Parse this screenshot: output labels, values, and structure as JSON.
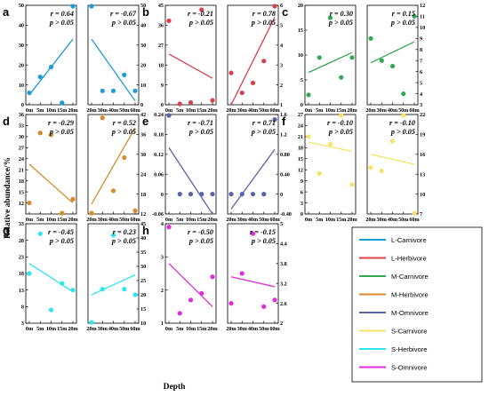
{
  "figure": {
    "ylabel": "Relative abundance/%",
    "xlabel": "Depth"
  },
  "legend": [
    {
      "name": "L-Carnivore",
      "color": "#1f9bd7"
    },
    {
      "name": "L-Herbivore",
      "color": "#d9404a"
    },
    {
      "name": "M-Carnivore",
      "color": "#33a852"
    },
    {
      "name": "M-Herbivore",
      "color": "#d98a2b"
    },
    {
      "name": "M-Omnivore",
      "color": "#5a62a8"
    },
    {
      "name": "S-Carnivore",
      "color": "#f5e46a"
    },
    {
      "name": "S-Herbivore",
      "color": "#2ee6f0"
    },
    {
      "name": "S-Omnivore",
      "color": "#e02fd8"
    }
  ],
  "chart_data": [
    {
      "label": "a",
      "type": "scatter",
      "panels": [
        {
          "series": "L-Carnivore",
          "color": "#1f9bd7",
          "ylim": [
            0,
            50
          ],
          "yticks": [
            0,
            10,
            20,
            30,
            40,
            50
          ],
          "yaxis": "left",
          "xticks": [
            "0m",
            "5m",
            "10m",
            "15m",
            "20m"
          ],
          "points": [
            [
              0,
              6
            ],
            [
              1,
              14
            ],
            [
              2,
              19
            ],
            [
              3,
              1
            ],
            [
              4,
              50
            ]
          ],
          "fit": [
            [
              0,
              5
            ],
            [
              4,
              33
            ]
          ],
          "r": "r = 0.64",
          "p": "p > 0.05"
        },
        {
          "series": "L-Carnivore",
          "color": "#1f9bd7",
          "ylim": [
            0,
            50
          ],
          "yticks": [
            0,
            10,
            20,
            30,
            40,
            50
          ],
          "yaxis": "right",
          "xticks": [
            "20m",
            "30m",
            "40m",
            "50m",
            "60m"
          ],
          "points": [
            [
              0,
              50
            ],
            [
              1,
              7
            ],
            [
              2,
              7
            ],
            [
              3,
              15
            ],
            [
              4,
              7
            ]
          ],
          "fit": [
            [
              0,
              33
            ],
            [
              4,
              2
            ]
          ],
          "r": "r = -0.67",
          "p": "p > 0.05"
        }
      ]
    },
    {
      "label": "b",
      "type": "scatter",
      "panels": [
        {
          "series": "L-Herbivore",
          "color": "#d9404a",
          "ylim": [
            0,
            45
          ],
          "yticks": [
            0,
            9,
            18,
            27,
            36,
            45
          ],
          "yaxis": "left",
          "xticks": [
            "0m",
            "5m",
            "10m",
            "15m",
            "20m"
          ],
          "points": [
            [
              0,
              38
            ],
            [
              1,
              0
            ],
            [
              2,
              1
            ],
            [
              3,
              43
            ],
            [
              4,
              2
            ]
          ],
          "fit": [
            [
              0,
              23
            ],
            [
              4,
              12
            ]
          ],
          "r": "r = -0.21",
          "p": "p > 0.05"
        },
        {
          "series": "L-Herbivore",
          "color": "#d9404a",
          "ylim": [
            1,
            6
          ],
          "yticks": [
            1,
            2,
            3,
            4,
            5,
            6
          ],
          "yaxis": "right",
          "xticks": [
            "20m",
            "30m",
            "40m",
            "50m",
            "60m"
          ],
          "points": [
            [
              0,
              2.6
            ],
            [
              1,
              1.6
            ],
            [
              2,
              2.1
            ],
            [
              3,
              3.2
            ],
            [
              4,
              6
            ]
          ],
          "fit": [
            [
              0,
              1
            ],
            [
              4,
              5.4
            ]
          ],
          "r": "r = 0.78",
          "p": "p > 0.05"
        }
      ]
    },
    {
      "label": "c",
      "type": "scatter",
      "panels": [
        {
          "series": "M-Carnivore",
          "color": "#33a852",
          "ylim": [
            0,
            20
          ],
          "yticks": [
            0,
            5,
            10,
            15,
            20
          ],
          "yaxis": "left",
          "xticks": [
            "0m",
            "5m",
            "10m",
            "15m",
            "20m"
          ],
          "points": [
            [
              0,
              2
            ],
            [
              1,
              9.5
            ],
            [
              2,
              17.5
            ],
            [
              3,
              5.5
            ],
            [
              4,
              9.5
            ]
          ],
          "fit": [
            [
              0,
              6.5
            ],
            [
              4,
              10.5
            ]
          ],
          "r": "r = 0.30",
          "p": "p > 0.05"
        },
        {
          "series": "M-Carnivore",
          "color": "#33a852",
          "ylim": [
            3,
            12
          ],
          "yticks": [
            3,
            4,
            5,
            6,
            7,
            8,
            9,
            10,
            11,
            12
          ],
          "yaxis": "right",
          "xticks": [
            "20m",
            "30m",
            "40m",
            "50m",
            "60m"
          ],
          "points": [
            [
              0,
              9
            ],
            [
              1,
              7
            ],
            [
              2,
              6.5
            ],
            [
              3,
              4
            ],
            [
              4,
              11
            ]
          ],
          "fit": [
            [
              0,
              6.8
            ],
            [
              4,
              8.7
            ]
          ],
          "r": "r = 0.15",
          "p": "p > 0.05"
        }
      ]
    },
    {
      "label": "d",
      "type": "scatter",
      "panels": [
        {
          "series": "M-Herbivore",
          "color": "#d98a2b",
          "ylim": [
            9,
            36
          ],
          "yticks": [
            12,
            15,
            18,
            21,
            24,
            27,
            30,
            33,
            36
          ],
          "yaxis": "left",
          "xticks": [
            "0m",
            "5m",
            "10m",
            "15m",
            "20m"
          ],
          "points": [
            [
              0,
              12
            ],
            [
              1,
              31
            ],
            [
              2,
              30.5
            ],
            [
              3,
              9
            ],
            [
              4,
              13
            ]
          ],
          "fit": [
            [
              0,
              22.5
            ],
            [
              4,
              12
            ]
          ],
          "r": "r = -0.29",
          "p": "p > 0.05"
        },
        {
          "series": "M-Herbivore",
          "color": "#d98a2b",
          "ylim": [
            12,
            42
          ],
          "yticks": [
            12,
            18,
            24,
            30,
            36,
            42
          ],
          "yaxis": "right",
          "xticks": [
            "20m",
            "30m",
            "40m",
            "50m",
            "60m"
          ],
          "points": [
            [
              0,
              12
            ],
            [
              1,
              41
            ],
            [
              2,
              19
            ],
            [
              3,
              29
            ],
            [
              4,
              13
            ]
          ],
          "fit": [
            [
              0,
              15
            ],
            [
              4,
              38
            ]
          ],
          "r": "r = 0.52",
          "p": "p > 0.05"
        }
      ]
    },
    {
      "label": "e",
      "type": "scatter",
      "panels": [
        {
          "series": "M-Omnivore",
          "color": "#5a62a8",
          "ylim": [
            -0.06,
            0.24
          ],
          "yticks": [
            -0.06,
            0.0,
            0.06,
            0.12,
            0.18,
            0.24
          ],
          "yaxis": "left",
          "xticks": [
            "0m",
            "5m",
            "10m",
            "15m",
            "20m"
          ],
          "points": [
            [
              0,
              0.24
            ],
            [
              1,
              0
            ],
            [
              2,
              0
            ],
            [
              3,
              0
            ],
            [
              4,
              0
            ]
          ],
          "fit": [
            [
              0,
              0.14
            ],
            [
              4,
              -0.06
            ]
          ],
          "r": "r = -0.71",
          "p": "p > 0.05"
        },
        {
          "series": "M-Omnivore",
          "color": "#5a62a8",
          "ylim": [
            -0.4,
            1.6
          ],
          "yticks": [
            -0.4,
            0.0,
            0.4,
            0.8,
            1.2,
            1.6
          ],
          "yaxis": "right",
          "xticks": [
            "20m",
            "30m",
            "40m",
            "50m",
            "60m"
          ],
          "points": [
            [
              0,
              0
            ],
            [
              1,
              0
            ],
            [
              2,
              0
            ],
            [
              3,
              0
            ],
            [
              4,
              1.5
            ]
          ],
          "fit": [
            [
              0,
              -0.3
            ],
            [
              4,
              0.9
            ]
          ],
          "r": "r = 0.71",
          "p": "p > 0.05"
        }
      ]
    },
    {
      "label": "f",
      "type": "scatter",
      "panels": [
        {
          "series": "S-Carnivore",
          "color": "#f5e46a",
          "ylim": [
            0,
            27
          ],
          "yticks": [
            0,
            3,
            6,
            9,
            12,
            15,
            18,
            21,
            24,
            27
          ],
          "yaxis": "left",
          "xticks": [
            "0m",
            "5m",
            "10m",
            "15m",
            "20m"
          ],
          "points": [
            [
              0,
              21
            ],
            [
              1,
              11
            ],
            [
              2,
              19
            ],
            [
              3,
              27
            ],
            [
              4,
              8
            ]
          ],
          "fit": [
            [
              0,
              19.5
            ],
            [
              4,
              17
            ]
          ],
          "r": "r = -0.10",
          "p": "p > 0.05"
        },
        {
          "series": "S-Carnivore",
          "color": "#f5e46a",
          "ylim": [
            7,
            22
          ],
          "yticks": [
            7,
            10,
            13,
            16,
            19,
            22
          ],
          "yaxis": "right",
          "xticks": [
            "20m",
            "30m",
            "40m",
            "50m",
            "60m"
          ],
          "points": [
            [
              0,
              14
            ],
            [
              1,
              13.5
            ],
            [
              2,
              18
            ],
            [
              3,
              22
            ],
            [
              4,
              7
            ]
          ],
          "fit": [
            [
              0,
              16
            ],
            [
              4,
              14.5
            ]
          ],
          "r": "r = -0.10",
          "p": "p > 0.05"
        }
      ]
    },
    {
      "label": "g",
      "type": "scatter",
      "panels": [
        {
          "series": "S-Herbivore",
          "color": "#2ee6f0",
          "ylim": [
            3,
            33
          ],
          "yticks": [
            3,
            8,
            13,
            18,
            23,
            28,
            33
          ],
          "yaxis": "left",
          "xticks": [
            "0m",
            "5m",
            "10m",
            "15m",
            "20m"
          ],
          "points": [
            [
              0,
              18
            ],
            [
              1,
              30
            ],
            [
              2,
              7
            ],
            [
              3,
              15
            ],
            [
              4,
              13
            ]
          ],
          "fit": [
            [
              0,
              21
            ],
            [
              4,
              12.5
            ]
          ],
          "r": "r = -0.45",
          "p": "p > 0.05"
        },
        {
          "series": "S-Herbivore",
          "color": "#2ee6f0",
          "ylim": [
            10,
            45
          ],
          "yticks": [
            10,
            15,
            20,
            25,
            30,
            35,
            40,
            45
          ],
          "yaxis": "right",
          "xticks": [
            "20m",
            "30m",
            "40m",
            "50m",
            "60m"
          ],
          "points": [
            [
              0,
              10
            ],
            [
              1,
              22
            ],
            [
              2,
              41
            ],
            [
              3,
              22
            ],
            [
              4,
              20
            ]
          ],
          "fit": [
            [
              0,
              20
            ],
            [
              4,
              27
            ]
          ],
          "r": "r = 0.23",
          "p": "p > 0.05"
        }
      ]
    },
    {
      "label": "h",
      "type": "scatter",
      "panels": [
        {
          "series": "S-Omnivore",
          "color": "#e02fd8",
          "ylim": [
            1,
            4
          ],
          "yticks": [
            1,
            2,
            3,
            4
          ],
          "yaxis": "left",
          "xticks": [
            "0m",
            "5m",
            "10m",
            "15m",
            "20m"
          ],
          "points": [
            [
              0,
              3.9
            ],
            [
              1,
              1.3
            ],
            [
              2,
              1.7
            ],
            [
              3,
              1.9
            ],
            [
              4,
              2.4
            ]
          ],
          "fit": [
            [
              0,
              2.8
            ],
            [
              4,
              1.5
            ]
          ],
          "r": "r = -0.50",
          "p": "p > 0.05"
        },
        {
          "series": "S-Omnivore",
          "color": "#e02fd8",
          "ylim": [
            2.0,
            5.0
          ],
          "yticks": [
            2.0,
            2.6,
            3.2,
            3.8,
            4.4,
            5.0
          ],
          "yaxis": "right",
          "xticks": [
            "20m",
            "30m",
            "40m",
            "50m",
            "60m"
          ],
          "points": [
            [
              0,
              2.6
            ],
            [
              1,
              3.5
            ],
            [
              2,
              4.7
            ],
            [
              3,
              2.5
            ],
            [
              4,
              2.7
            ]
          ],
          "fit": [
            [
              0,
              3.4
            ],
            [
              4,
              3.1
            ]
          ],
          "r": "r = -0.15",
          "p": "p > 0.05"
        }
      ]
    }
  ]
}
